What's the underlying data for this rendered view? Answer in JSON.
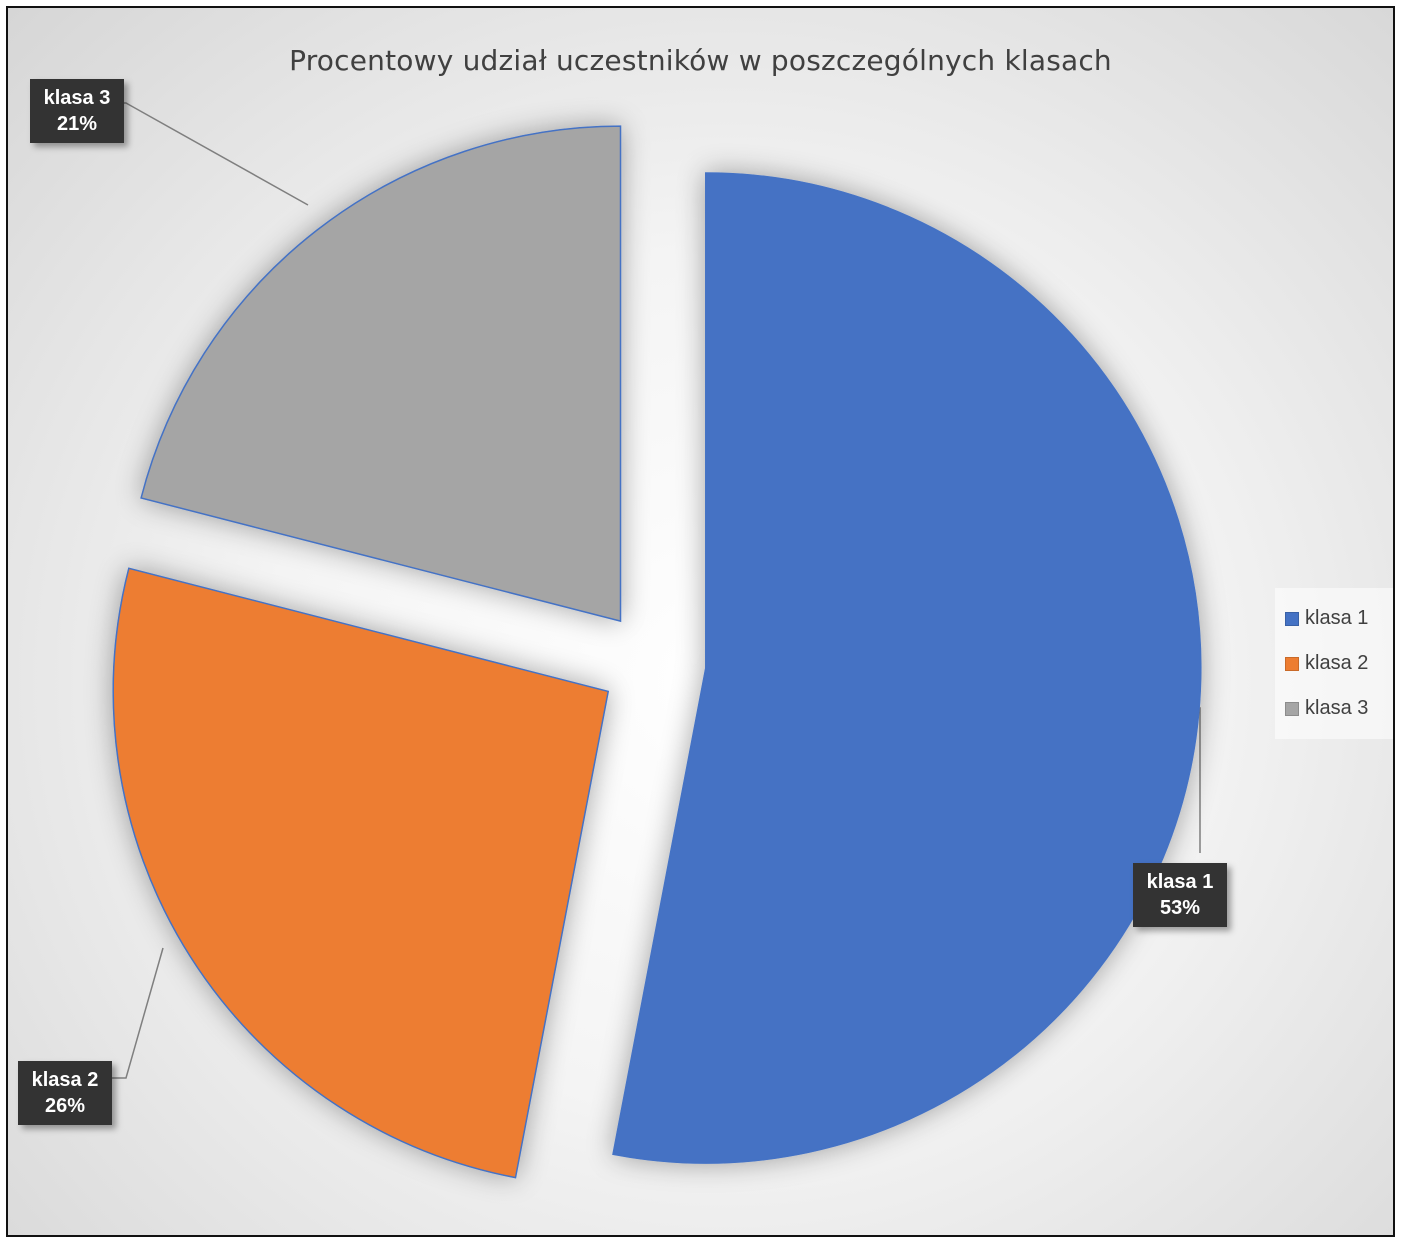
{
  "chart_data": {
    "type": "pie",
    "title": "Procentowy udział uczestników w poszczególnych klasach",
    "categories": [
      "klasa 1",
      "klasa 2",
      "klasa 3"
    ],
    "values": [
      53,
      26,
      21
    ],
    "labels": [
      {
        "name": "klasa 1",
        "percent": "53%"
      },
      {
        "name": "klasa 2",
        "percent": "26%"
      },
      {
        "name": "klasa 3",
        "percent": "21%"
      }
    ],
    "colors": [
      "#4472C4",
      "#ED7D31",
      "#A5A5A5"
    ],
    "legend_position": "right",
    "exploded": true
  },
  "legend": {
    "items": [
      {
        "label": "klasa 1",
        "color": "#4472C4"
      },
      {
        "label": "klasa 2",
        "color": "#ED7D31"
      },
      {
        "label": "klasa 3",
        "color": "#A5A5A5"
      }
    ]
  }
}
